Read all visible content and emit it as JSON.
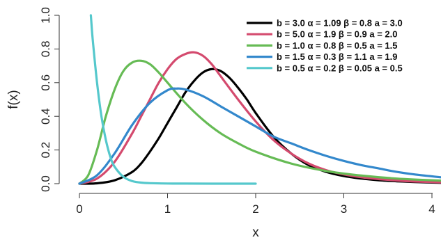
{
  "chart_data": {
    "type": "line",
    "title": "",
    "xlabel": "x",
    "ylabel": "f(x)",
    "xlim": [
      0,
      4.1
    ],
    "ylim": [
      0,
      1.0
    ],
    "xticks": [
      "0",
      "1",
      "2",
      "3",
      "4"
    ],
    "yticks": [
      "0.0",
      "0.2",
      "0.4",
      "0.6",
      "0.8",
      "1.0"
    ],
    "grid": false,
    "legend_position": "top-right",
    "series": [
      {
        "name": "b = 3.0  α = 1.09  β = 0.8  a = 3.0",
        "color": "#000000",
        "x": [
          0,
          0.2,
          0.4,
          0.6,
          0.7,
          0.8,
          0.9,
          1.0,
          1.1,
          1.2,
          1.3,
          1.4,
          1.5,
          1.6,
          1.7,
          1.8,
          1.9,
          2.0,
          2.2,
          2.4,
          2.6,
          2.8,
          3.0,
          3.2,
          3.4,
          3.6,
          3.8,
          4.1
        ],
        "y": [
          0,
          0.002,
          0.02,
          0.07,
          0.12,
          0.19,
          0.27,
          0.36,
          0.45,
          0.54,
          0.61,
          0.66,
          0.68,
          0.67,
          0.63,
          0.57,
          0.5,
          0.42,
          0.28,
          0.18,
          0.11,
          0.07,
          0.045,
          0.03,
          0.02,
          0.014,
          0.01,
          0.005
        ]
      },
      {
        "name": "b = 5.0  α = 1.9  β = 0.9  a = 2.0",
        "color": "#D44A6E",
        "x": [
          0,
          0.2,
          0.4,
          0.6,
          0.7,
          0.8,
          0.9,
          1.0,
          1.1,
          1.2,
          1.3,
          1.4,
          1.5,
          1.6,
          1.8,
          2.0,
          2.2,
          2.4,
          2.6,
          2.8,
          3.0,
          3.2,
          3.4,
          3.6,
          3.8,
          4.1
        ],
        "y": [
          0,
          0.03,
          0.13,
          0.3,
          0.4,
          0.5,
          0.6,
          0.68,
          0.74,
          0.77,
          0.78,
          0.76,
          0.71,
          0.64,
          0.5,
          0.37,
          0.26,
          0.18,
          0.12,
          0.08,
          0.055,
          0.038,
          0.027,
          0.019,
          0.013,
          0.008
        ]
      },
      {
        "name": "b = 1.0  α = 0.8  β = 0.5  a = 1.5",
        "color": "#66BB55",
        "x": [
          0,
          0.1,
          0.2,
          0.3,
          0.4,
          0.5,
          0.6,
          0.7,
          0.8,
          0.9,
          1.0,
          1.2,
          1.4,
          1.6,
          1.8,
          2.0,
          2.4,
          2.8,
          3.2,
          3.6,
          4.1
        ],
        "y": [
          0,
          0.05,
          0.2,
          0.4,
          0.56,
          0.67,
          0.72,
          0.73,
          0.71,
          0.66,
          0.6,
          0.48,
          0.38,
          0.3,
          0.24,
          0.19,
          0.12,
          0.075,
          0.048,
          0.03,
          0.018
        ]
      },
      {
        "name": "b = 1.5  α = 0.3  β = 1.1  a = 1.9",
        "color": "#3388CC",
        "x": [
          0,
          0.2,
          0.4,
          0.6,
          0.8,
          1.0,
          1.1,
          1.2,
          1.4,
          1.6,
          1.8,
          2.0,
          2.2,
          2.4,
          2.6,
          2.8,
          3.0,
          3.2,
          3.4,
          3.6,
          3.8,
          4.1
        ],
        "y": [
          0,
          0.05,
          0.18,
          0.35,
          0.48,
          0.555,
          0.565,
          0.56,
          0.52,
          0.46,
          0.4,
          0.34,
          0.28,
          0.24,
          0.2,
          0.165,
          0.135,
          0.11,
          0.09,
          0.07,
          0.055,
          0.038
        ]
      },
      {
        "name": "b = 0.5  α = 0.2  β = 0.05  a = 0.5",
        "color": "#55C8CC",
        "x": [
          0.13,
          0.15,
          0.2,
          0.25,
          0.3,
          0.35,
          0.4,
          0.5,
          0.6,
          0.7,
          0.8,
          1.0,
          1.2,
          1.5,
          2.0
        ],
        "y": [
          1.0,
          0.86,
          0.6,
          0.4,
          0.26,
          0.16,
          0.1,
          0.04,
          0.015,
          0.006,
          0.003,
          0.001,
          0.0005,
          0.0002,
          0.0001
        ]
      }
    ]
  }
}
